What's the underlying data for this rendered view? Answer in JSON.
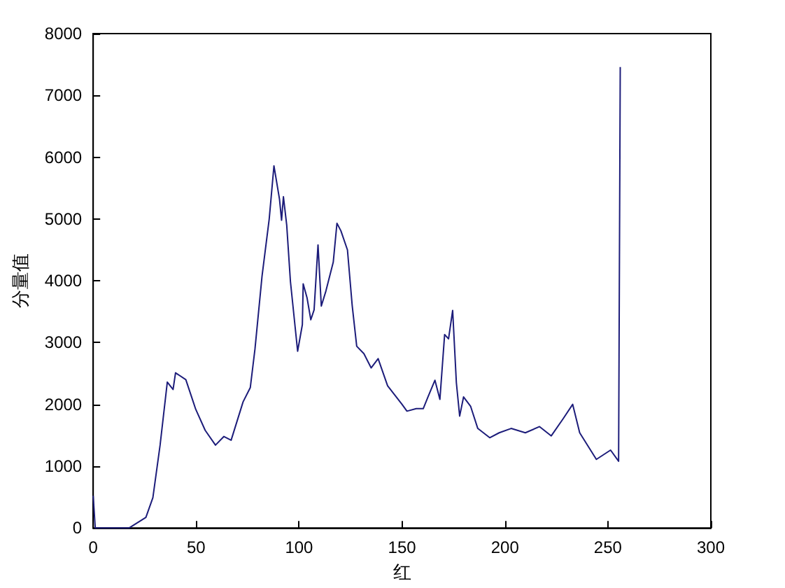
{
  "chart_data": {
    "type": "line",
    "xlabel": "红",
    "ylabel": "分量值",
    "xlim": [
      0,
      300
    ],
    "xticks": [
      0,
      50,
      100,
      150,
      200,
      250,
      300
    ],
    "ylim": [
      0,
      8000
    ],
    "yticks": [
      0,
      1000,
      2000,
      3000,
      4000,
      5000,
      6000,
      7000,
      8000
    ],
    "grid": false,
    "marker": "none",
    "line_style": "solid",
    "series": [
      {
        "color": "#1c1c7a",
        "x": [
          0,
          1,
          17.5,
          25.6,
          29,
          32.5,
          36,
          38.8,
          40,
          45,
          48.6,
          49.8,
          54.4,
          59.4,
          63.5,
          67,
          72.8,
          76.3,
          78.6,
          82,
          85.5,
          87.8,
          90.5,
          91.5,
          92.4,
          94,
          95.8,
          99.3,
          101.6,
          102,
          103.9,
          105.7,
          107.3,
          109.2,
          110.8,
          113,
          116.6,
          118.4,
          120.3,
          123.5,
          125.8,
          128,
          131.5,
          135,
          138.4,
          143,
          150,
          152.4,
          156.9,
          160.3,
          162.6,
          166,
          168.4,
          170.7,
          172.6,
          174.6,
          176.4,
          178,
          179.9,
          183.3,
          186.8,
          192.6,
          197.2,
          203,
          209.9,
          216.8,
          222.5,
          228.3,
          232.9,
          236.3,
          244.4,
          251.3,
          255.2,
          256
        ],
        "values": [
          520,
          0,
          0,
          170,
          490,
          1340,
          2360,
          2240,
          2510,
          2400,
          2040,
          1920,
          1580,
          1340,
          1480,
          1420,
          2040,
          2270,
          2900,
          4070,
          5000,
          5860,
          5320,
          4980,
          5360,
          4900,
          3990,
          2860,
          3290,
          3950,
          3720,
          3370,
          3530,
          4580,
          3590,
          3830,
          4300,
          4930,
          4810,
          4500,
          3600,
          2940,
          2820,
          2590,
          2740,
          2300,
          2000,
          1890,
          1930,
          1930,
          2120,
          2390,
          2080,
          3130,
          3060,
          3520,
          2350,
          1810,
          2120,
          1970,
          1610,
          1460,
          1540,
          1610,
          1540,
          1640,
          1490,
          1770,
          2000,
          1540,
          1110,
          1260,
          1080,
          7460
        ]
      }
    ]
  }
}
